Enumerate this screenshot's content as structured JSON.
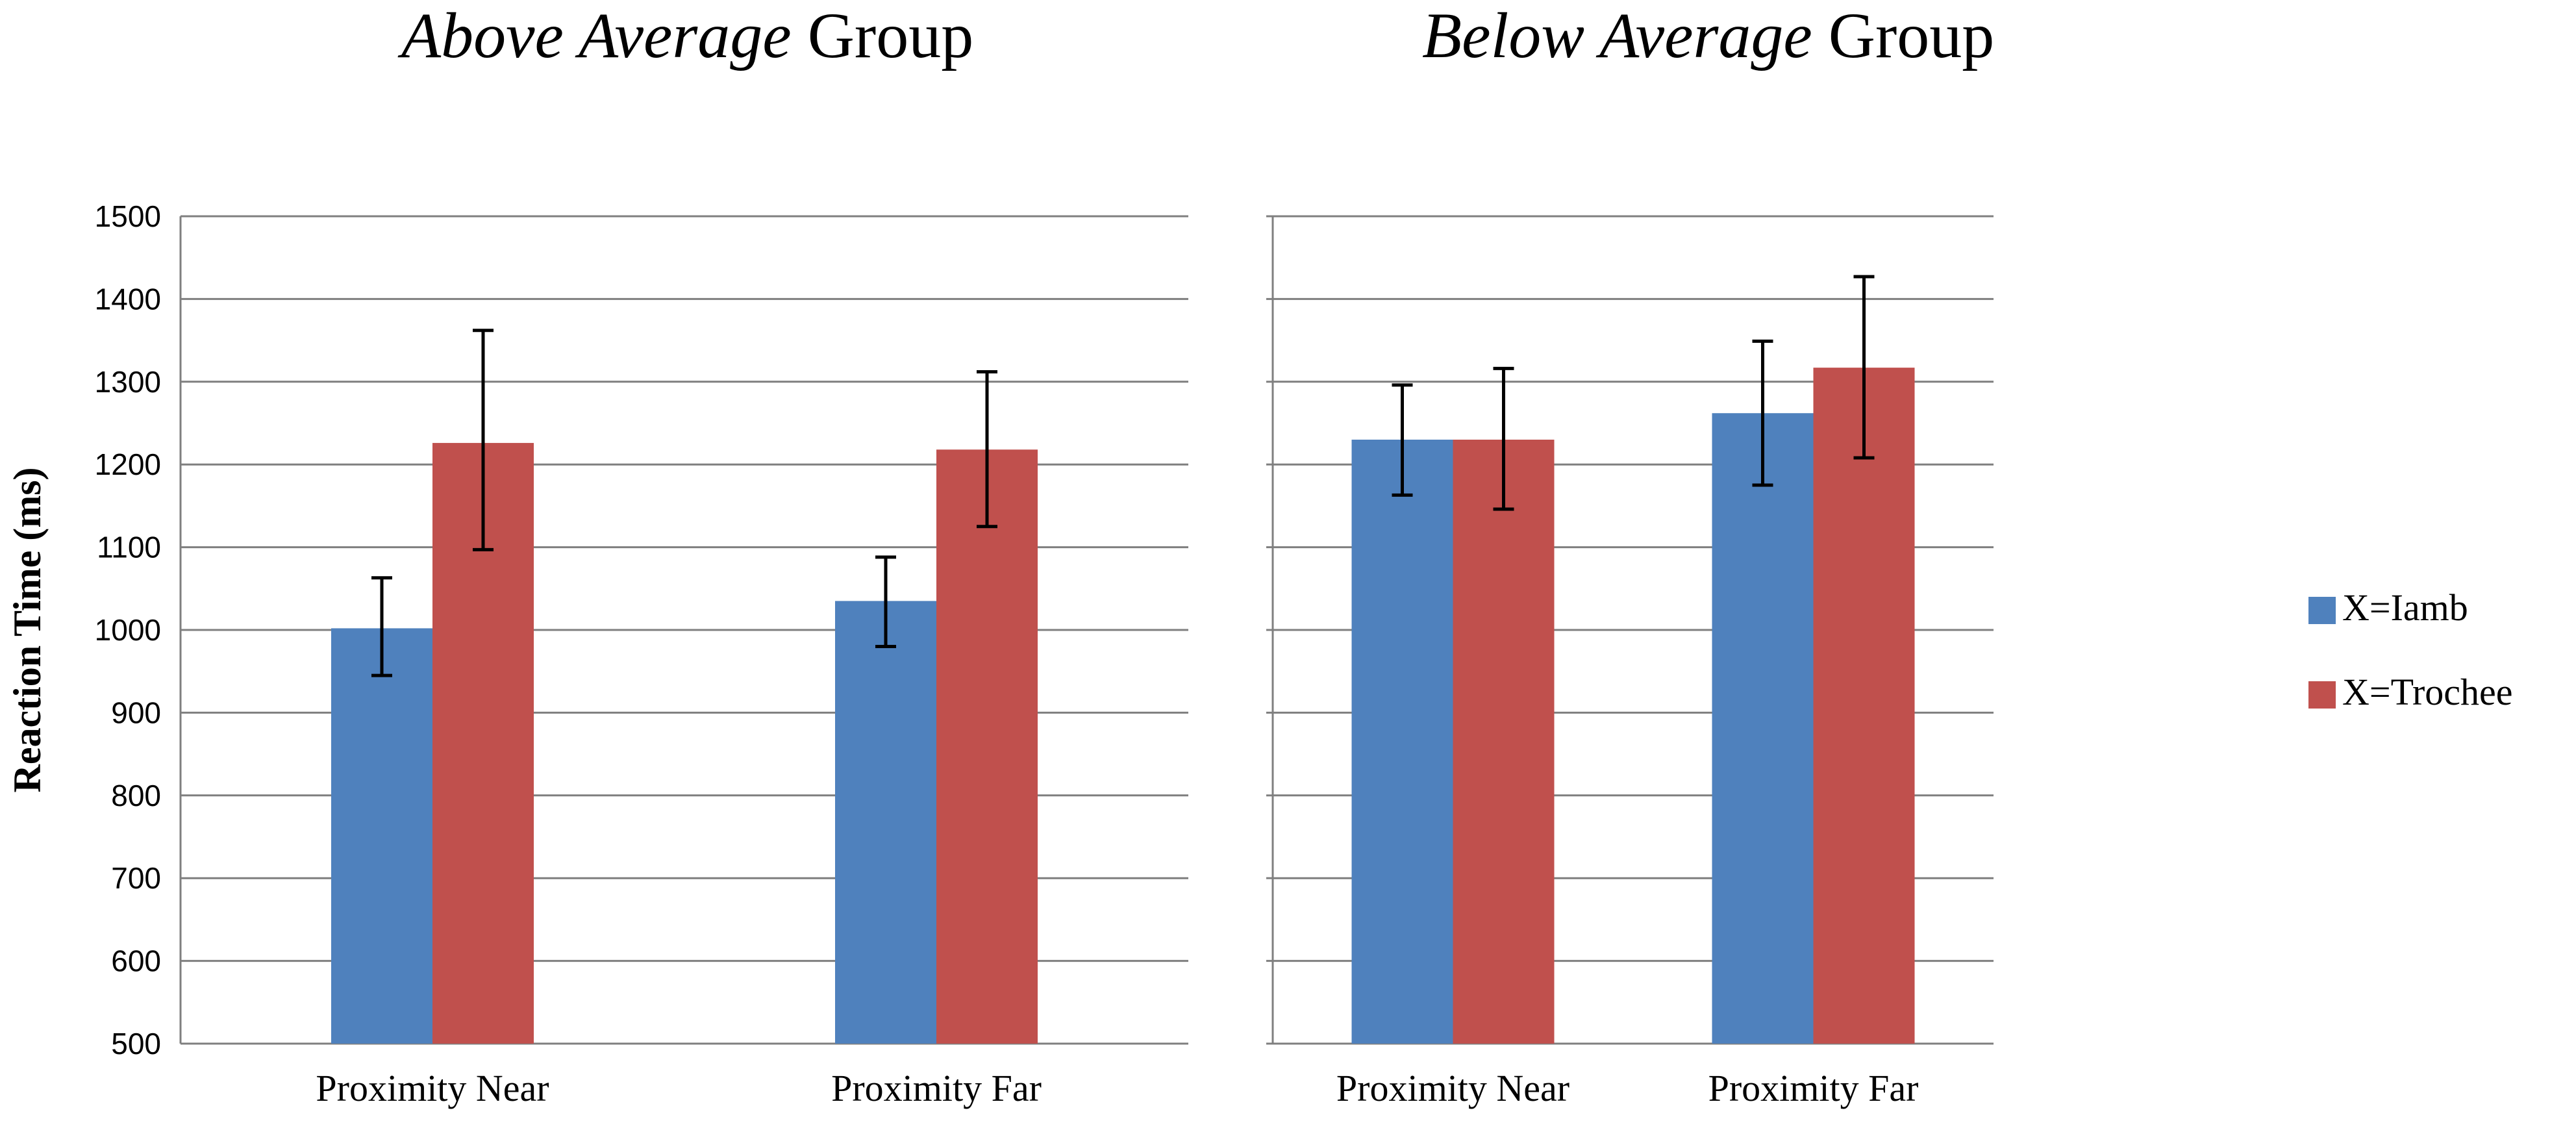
{
  "chart_data": [
    {
      "type": "bar",
      "title_italic": "Above Average",
      "title_plain": "Group",
      "categories": [
        "Proximity Near",
        "Proximity Far"
      ],
      "series": [
        {
          "name": "X=Iamb",
          "color": "#4F81BD",
          "values": [
            1002,
            1035
          ],
          "error_low": [
            945,
            980
          ],
          "error_high": [
            1063,
            1088
          ]
        },
        {
          "name": "X=Trochee",
          "color": "#C0504D",
          "values": [
            1226,
            1218
          ],
          "error_low": [
            1097,
            1125
          ],
          "error_high": [
            1362,
            1312
          ]
        }
      ],
      "ylabel": "Reaction Time (ms)",
      "ylim": [
        500,
        1500
      ],
      "yticks": [
        500,
        600,
        700,
        800,
        900,
        1000,
        1100,
        1200,
        1300,
        1400,
        1500
      ],
      "grid": true
    },
    {
      "type": "bar",
      "title_italic": "Below Average",
      "title_plain": "Group",
      "categories": [
        "Proximity Near",
        "Proximity Far"
      ],
      "series": [
        {
          "name": "X=Iamb",
          "color": "#4F81BD",
          "values": [
            1230,
            1262
          ],
          "error_low": [
            1163,
            1175
          ],
          "error_high": [
            1296,
            1349
          ]
        },
        {
          "name": "X=Trochee",
          "color": "#C0504D",
          "values": [
            1230,
            1317
          ],
          "error_low": [
            1146,
            1208
          ],
          "error_high": [
            1316,
            1427
          ]
        }
      ],
      "ylim": [
        500,
        1500
      ],
      "yticks": [
        500,
        600,
        700,
        800,
        900,
        1000,
        1100,
        1200,
        1300,
        1400,
        1500
      ],
      "grid": true
    }
  ],
  "legend": {
    "position": "right",
    "items": [
      {
        "label": "X=Iamb",
        "color": "#4F81BD"
      },
      {
        "label": "X=Trochee",
        "color": "#C0504D"
      }
    ]
  },
  "colors": {
    "gridline": "#7F7F7F",
    "error_bar": "#000000"
  }
}
